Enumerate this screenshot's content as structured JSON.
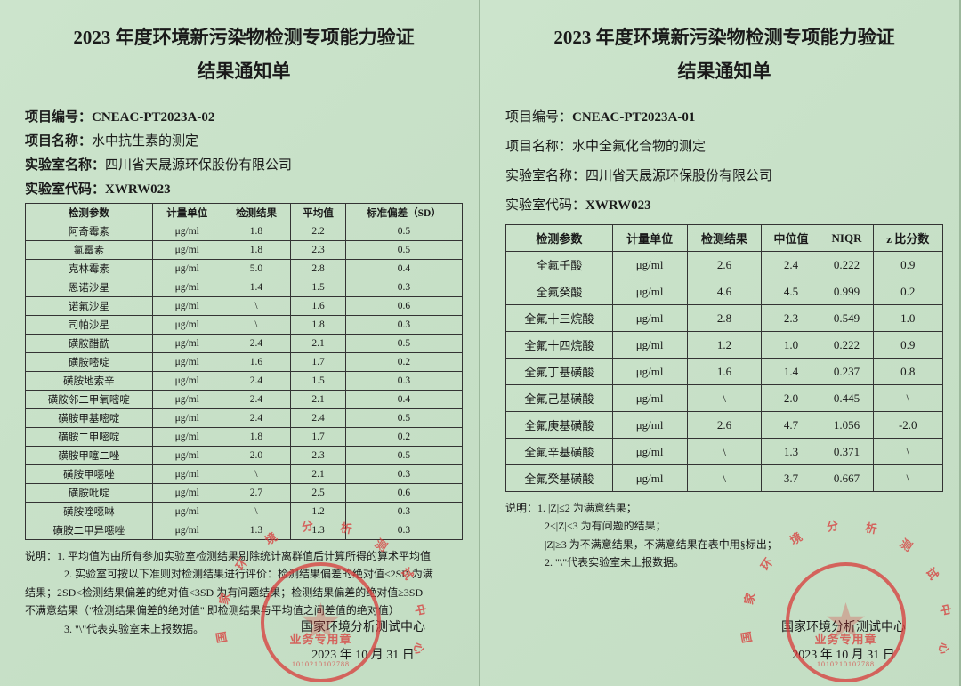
{
  "common": {
    "title_line1": "2023 年度环境新污染物检测专项能力验证",
    "title_line2": "结果通知单",
    "lbl_project_code": "项目编号：",
    "lbl_project_name": "项目名称：",
    "lbl_lab_name": "实验室名称：",
    "lbl_lab_code": "实验室代码：",
    "lab_name": "四川省天晟源环保股份有限公司",
    "lab_code": "XWRW023",
    "issuer": "国家环境分析测试中心",
    "date": "2023 年 10 月 31 日",
    "stamp_outer": "国家环境分析测试中心",
    "stamp_inner": "业务专用章",
    "stamp_serial": "1010210102788",
    "notes_prefix": "说明："
  },
  "left": {
    "project_code": "CNEAC-PT2023A-02",
    "project_name": "水中抗生素的测定",
    "columns": [
      "检测参数",
      "计量单位",
      "检测结果",
      "平均值",
      "标准偏差（SD）"
    ],
    "rows": [
      [
        "阿奇霉素",
        "μg/ml",
        "1.8",
        "2.2",
        "0.5"
      ],
      [
        "氯霉素",
        "μg/ml",
        "1.8",
        "2.3",
        "0.5"
      ],
      [
        "克林霉素",
        "μg/ml",
        "5.0",
        "2.8",
        "0.4"
      ],
      [
        "恩诺沙星",
        "μg/ml",
        "1.4",
        "1.5",
        "0.3"
      ],
      [
        "诺氟沙星",
        "μg/ml",
        "\\",
        "1.6",
        "0.6"
      ],
      [
        "司帕沙星",
        "μg/ml",
        "\\",
        "1.8",
        "0.3"
      ],
      [
        "磺胺醋酰",
        "μg/ml",
        "2.4",
        "2.1",
        "0.5"
      ],
      [
        "磺胺嘧啶",
        "μg/ml",
        "1.6",
        "1.7",
        "0.2"
      ],
      [
        "磺胺地索辛",
        "μg/ml",
        "2.4",
        "1.5",
        "0.3"
      ],
      [
        "磺胺邻二甲氧嘧啶",
        "μg/ml",
        "2.4",
        "2.1",
        "0.4"
      ],
      [
        "磺胺甲基嘧啶",
        "μg/ml",
        "2.4",
        "2.4",
        "0.5"
      ],
      [
        "磺胺二甲嘧啶",
        "μg/ml",
        "1.8",
        "1.7",
        "0.2"
      ],
      [
        "磺胺甲噻二唑",
        "μg/ml",
        "2.0",
        "2.3",
        "0.5"
      ],
      [
        "磺胺甲噁唑",
        "μg/ml",
        "\\",
        "2.1",
        "0.3"
      ],
      [
        "磺胺吡啶",
        "μg/ml",
        "2.7",
        "2.5",
        "0.6"
      ],
      [
        "磺胺喹噁啉",
        "μg/ml",
        "\\",
        "1.2",
        "0.3"
      ],
      [
        "磺胺二甲异噁唑",
        "μg/ml",
        "1.3",
        "1.3",
        "0.3"
      ]
    ],
    "notes": [
      "1. 平均值为由所有参加实验室检测结果剔除统计离群值后计算所得的算术平均值",
      "2. 实验室可按以下准则对检测结果进行评价：检测结果偏差的绝对值≤2SD 为满",
      "结果；2SD<检测结果偏差的绝对值<3SD 为有问题结果；检测结果偏差的绝对值≥3SD",
      "不满意结果（\"检测结果偏差的绝对值\" 即检测结果与平均值之间差值的绝对值）",
      "3. \"\\\"代表实验室未上报数据。"
    ]
  },
  "right": {
    "project_code": "CNEAC-PT2023A-01",
    "project_name": "水中全氟化合物的测定",
    "columns": [
      "检测参数",
      "计量单位",
      "检测结果",
      "中位值",
      "NIQR",
      "z 比分数"
    ],
    "rows": [
      [
        "全氟壬酸",
        "μg/ml",
        "2.6",
        "2.4",
        "0.222",
        "0.9"
      ],
      [
        "全氟癸酸",
        "μg/ml",
        "4.6",
        "4.5",
        "0.999",
        "0.2"
      ],
      [
        "全氟十三烷酸",
        "μg/ml",
        "2.8",
        "2.3",
        "0.549",
        "1.0"
      ],
      [
        "全氟十四烷酸",
        "μg/ml",
        "1.2",
        "1.0",
        "0.222",
        "0.9"
      ],
      [
        "全氟丁基磺酸",
        "μg/ml",
        "1.6",
        "1.4",
        "0.237",
        "0.8"
      ],
      [
        "全氟己基磺酸",
        "μg/ml",
        "\\",
        "2.0",
        "0.445",
        "\\"
      ],
      [
        "全氟庚基磺酸",
        "μg/ml",
        "2.6",
        "4.7",
        "1.056",
        "-2.0"
      ],
      [
        "全氟辛基磺酸",
        "μg/ml",
        "\\",
        "1.3",
        "0.371",
        "\\"
      ],
      [
        "全氟癸基磺酸",
        "μg/ml",
        "\\",
        "3.7",
        "0.667",
        "\\"
      ]
    ],
    "notes": [
      "1. |Z|≤2 为满意结果；",
      "2<|Z|<3 为有问题的结果；",
      "|Z|≥3 为不满意结果，不满意结果在表中用§标出；",
      "2. \"\\\"代表实验室未上报数据。"
    ]
  }
}
